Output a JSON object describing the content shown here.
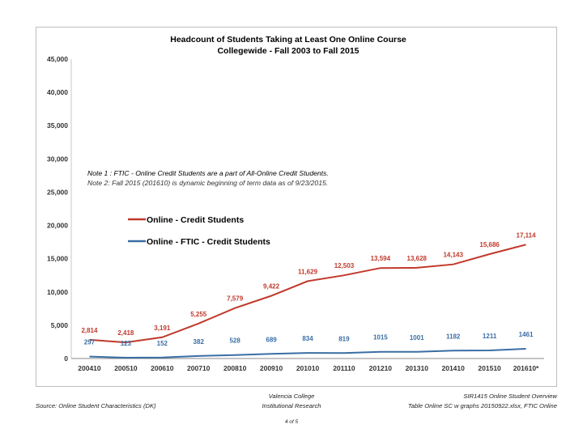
{
  "chart_data": {
    "type": "line",
    "title": "Headcount of Students Taking at Least One Online Course",
    "subtitle": "Collegewide - Fall 2003 to Fall 2015",
    "categories": [
      "200410",
      "200510",
      "200610",
      "200710",
      "200810",
      "200910",
      "201010",
      "201110",
      "201210",
      "201310",
      "201410",
      "201510",
      "201610*"
    ],
    "ylim": [
      0,
      45000
    ],
    "yticks": [
      0,
      5000,
      10000,
      15000,
      20000,
      25000,
      30000,
      35000,
      40000,
      45000
    ],
    "ytick_labels": [
      "0",
      "5,000",
      "10,000",
      "15,000",
      "20,000",
      "25,000",
      "30,000",
      "35,000",
      "40,000",
      "45,000"
    ],
    "series": [
      {
        "name": "Online - Credit Students",
        "color": "#c0392b",
        "values": [
          2814,
          2418,
          3191,
          5255,
          7579,
          9422,
          11629,
          12503,
          13594,
          13628,
          14143,
          15686,
          17114
        ],
        "labels": [
          "2,814",
          "2,418",
          "3,191",
          "5,255",
          "7,579",
          "9,422",
          "11,629",
          "12,503",
          "13,594",
          "13,628",
          "14,143",
          "15,686",
          "17,114"
        ]
      },
      {
        "name": "Online - FTIC - Credit Students",
        "color": "#3a6ea5",
        "values": [
          297,
          123,
          152,
          382,
          528,
          689,
          834,
          819,
          1015,
          1001,
          1182,
          1211,
          1461
        ],
        "labels": [
          "297",
          "123",
          "152",
          "382",
          "528",
          "689",
          "834",
          "819",
          "1015",
          "1001",
          "1182",
          "1211",
          "1461"
        ]
      }
    ],
    "notes": [
      "Note 1 : FTIC - Online Credit Students are a part of All-Online Credit Students.",
      "Note 2: Fall 2015 (201610)  is dynamic beginning of term data as of 9/23/2015."
    ],
    "grid": false,
    "legend_position": "center-left"
  },
  "footer": {
    "source": "Source:  Online Student Characteristics (DK)",
    "center_line1": "Valencia College",
    "center_line2": "Institutional Research",
    "right_line1": "SIR1415 Online Student Overview",
    "right_line2": "Table Online SC w graphs 20150922.xlsx, FTIC Online",
    "page": "4 of 5"
  }
}
